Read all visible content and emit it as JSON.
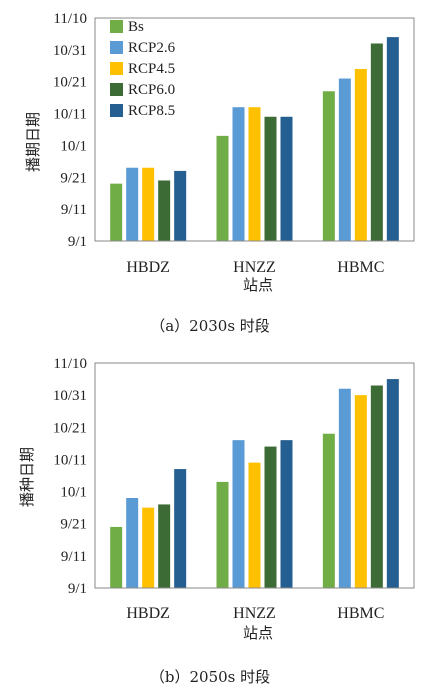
{
  "colors": {
    "Bs": "#70ad47",
    "RCP2.6": "#5b9bd5",
    "RCP4.5": "#ffc000",
    "RCP6.0": "#3d6b35",
    "RCP8.5": "#255e91",
    "axis": "#888888"
  },
  "chart_data": [
    {
      "type": "bar",
      "caption": "（a）2030s 时段",
      "xlabel": "站点",
      "ylabel": "播期日期",
      "categories": [
        "HBDZ",
        "HNZZ",
        "HBMC"
      ],
      "yticks": [
        "9/1",
        "9/11",
        "9/21",
        "10/1",
        "10/11",
        "10/21",
        "10/31",
        "11/10"
      ],
      "ylim": [
        "9/1",
        "11/10"
      ],
      "legend": "top-left, inside plot",
      "grid": false,
      "series": [
        {
          "name": "Bs",
          "values": [
            "9/19",
            "10/4",
            "10/18"
          ]
        },
        {
          "name": "RCP2.6",
          "values": [
            "9/24",
            "10/13",
            "10/22"
          ]
        },
        {
          "name": "RCP4.5",
          "values": [
            "9/24",
            "10/13",
            "10/25"
          ]
        },
        {
          "name": "RCP6.0",
          "values": [
            "9/20",
            "10/10",
            "11/2"
          ]
        },
        {
          "name": "RCP8.5",
          "values": [
            "9/23",
            "10/10",
            "11/4"
          ]
        }
      ]
    },
    {
      "type": "bar",
      "caption": "（b）2050s 时段",
      "xlabel": "站点",
      "ylabel": "播种日期",
      "categories": [
        "HBDZ",
        "HNZZ",
        "HBMC"
      ],
      "yticks": [
        "9/1",
        "9/11",
        "9/21",
        "10/1",
        "10/11",
        "10/21",
        "10/31",
        "11/10"
      ],
      "ylim": [
        "9/1",
        "11/10"
      ],
      "grid": false,
      "series": [
        {
          "name": "Bs",
          "values": [
            "9/20",
            "10/4",
            "10/19"
          ]
        },
        {
          "name": "RCP2.6",
          "values": [
            "9/29",
            "10/17",
            "11/2"
          ]
        },
        {
          "name": "RCP4.5",
          "values": [
            "9/26",
            "10/10",
            "10/31"
          ]
        },
        {
          "name": "RCP6.0",
          "values": [
            "9/27",
            "10/15",
            "11/3"
          ]
        },
        {
          "name": "RCP8.5",
          "values": [
            "10/8",
            "10/17",
            "11/5"
          ]
        }
      ]
    }
  ]
}
